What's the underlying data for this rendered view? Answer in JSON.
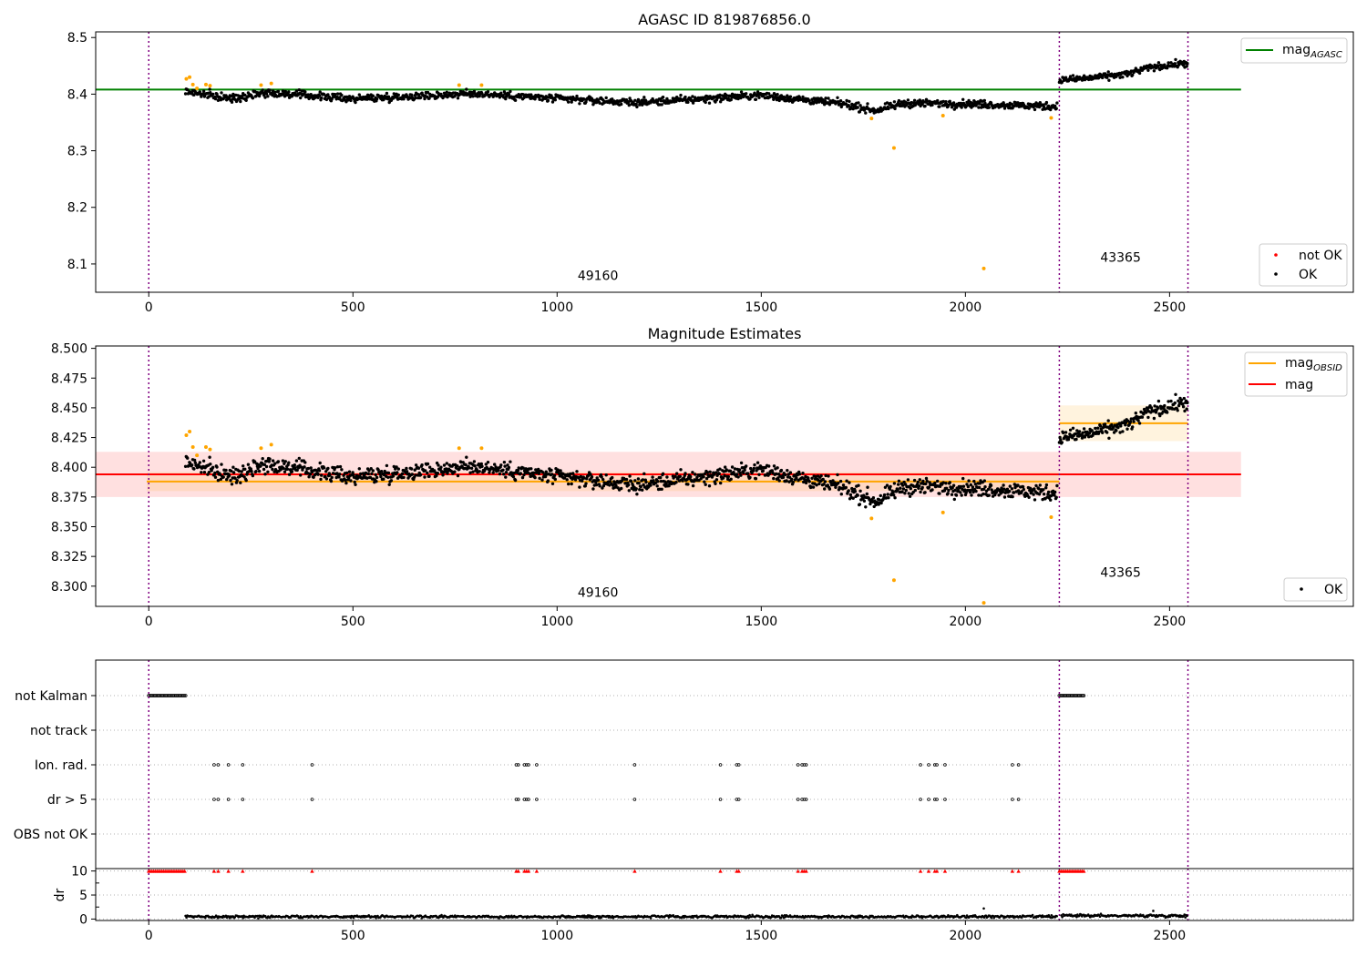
{
  "colors": {
    "ok": "#000000",
    "not_ok_point": "#ff0000",
    "flagged_point": "#ffa500",
    "agasc_line": "#008000",
    "obsid_line": "#ffa500",
    "mag_line": "#ff0000",
    "obs_boundary": "#800080",
    "dr_flag_marker": "#ff0000"
  },
  "obs_boundaries": [
    0,
    2230,
    2545
  ],
  "chart_data": [
    {
      "type": "scatter",
      "title": "AGASC ID 819876856.0",
      "xlim": [
        -130,
        2950
      ],
      "ylim": [
        8.05,
        8.51
      ],
      "xticks": [
        0,
        500,
        1000,
        1500,
        2000,
        2500
      ],
      "yticks": [
        8.1,
        8.2,
        8.3,
        8.4,
        8.5
      ],
      "ytick_labels": [
        "8.1",
        "8.2",
        "8.3",
        "8.4",
        "8.5"
      ],
      "grid": false,
      "lines": [
        {
          "name": "mag_AGASC",
          "label_main": "mag",
          "label_sub": "AGASC",
          "color": "#008000",
          "y": 8.408,
          "x": [
            -130,
            2675
          ]
        }
      ],
      "series": [
        {
          "name": "not OK",
          "color": "#ff0000"
        },
        {
          "name": "OK",
          "color": "#000000"
        }
      ],
      "segments": [
        {
          "x_range": [
            90,
            2225
          ],
          "levels": [
            [
              90,
              8.405
            ],
            [
              200,
              8.392
            ],
            [
              280,
              8.403
            ],
            [
              500,
              8.392
            ],
            [
              800,
              8.401
            ],
            [
              1000,
              8.392
            ],
            [
              1200,
              8.385
            ],
            [
              1500,
              8.398
            ],
            [
              1700,
              8.383
            ],
            [
              1780,
              8.371
            ],
            [
              1850,
              8.384
            ],
            [
              2000,
              8.383
            ],
            [
              2225,
              8.378
            ]
          ],
          "noise": 0.008
        },
        {
          "x_range": [
            2230,
            2545
          ],
          "levels": [
            [
              2230,
              8.425
            ],
            [
              2300,
              8.428
            ],
            [
              2400,
              8.436
            ],
            [
              2450,
              8.447
            ],
            [
              2545,
              8.455
            ]
          ],
          "noise": 0.007
        }
      ],
      "flagged_points": [
        {
          "x": 92,
          "y": 8.427
        },
        {
          "x": 100,
          "y": 8.43
        },
        {
          "x": 108,
          "y": 8.417
        },
        {
          "x": 118,
          "y": 8.41
        },
        {
          "x": 140,
          "y": 8.417
        },
        {
          "x": 150,
          "y": 8.415
        },
        {
          "x": 275,
          "y": 8.416
        },
        {
          "x": 300,
          "y": 8.419
        },
        {
          "x": 760,
          "y": 8.416
        },
        {
          "x": 815,
          "y": 8.416
        },
        {
          "x": 1770,
          "y": 8.357
        },
        {
          "x": 1825,
          "y": 8.305
        },
        {
          "x": 1945,
          "y": 8.362
        },
        {
          "x": 2045,
          "y": 8.092
        },
        {
          "x": 2210,
          "y": 8.358
        }
      ],
      "annotations": [
        {
          "text": "49160",
          "x": 1100,
          "y": 8.072
        },
        {
          "text": "43365",
          "x": 2380,
          "y": 8.104
        }
      ],
      "legends": [
        {
          "position": "upper right",
          "entries": [
            "mag_AGASC"
          ]
        },
        {
          "position": "lower right",
          "entries": [
            "not OK",
            "OK"
          ]
        }
      ]
    },
    {
      "type": "scatter",
      "title": "Magnitude Estimates",
      "xlim": [
        -130,
        2950
      ],
      "ylim": [
        8.283,
        8.502
      ],
      "xticks": [
        0,
        500,
        1000,
        1500,
        2000,
        2500
      ],
      "yticks": [
        8.3,
        8.325,
        8.35,
        8.375,
        8.4,
        8.425,
        8.45,
        8.475,
        8.5
      ],
      "ytick_labels": [
        "8.300",
        "8.325",
        "8.350",
        "8.375",
        "8.400",
        "8.425",
        "8.450",
        "8.475",
        "8.500"
      ],
      "grid": false,
      "bands": [
        {
          "x": [
            -130,
            2675
          ],
          "y": [
            8.375,
            8.413
          ],
          "color": "#ff0000",
          "opacity": 0.12
        },
        {
          "x": [
            -5,
            2230
          ],
          "y": [
            8.38,
            8.396
          ],
          "color": "#ffa500",
          "opacity": 0.13
        },
        {
          "x": [
            2230,
            2545
          ],
          "y": [
            8.422,
            8.452
          ],
          "color": "#ffa500",
          "opacity": 0.13
        }
      ],
      "lines": [
        {
          "name": "mag",
          "label_main": "mag",
          "label_sub": "",
          "color": "#ff0000",
          "y": 8.394,
          "x": [
            -130,
            2675
          ]
        },
        {
          "name": "mag_OBSID",
          "label_main": "mag",
          "label_sub": "OBSID",
          "color": "#ffa500",
          "y": 8.388,
          "x": [
            -5,
            2230
          ]
        },
        {
          "name": "mag_OBSID_2",
          "label_main": "mag",
          "label_sub": "OBSID",
          "color": "#ffa500",
          "y": 8.437,
          "x": [
            2230,
            2545
          ]
        }
      ],
      "series": [
        {
          "name": "OK",
          "color": "#000000"
        }
      ],
      "segments": [
        {
          "x_range": [
            90,
            2225
          ],
          "levels": [
            [
              90,
              8.405
            ],
            [
              200,
              8.392
            ],
            [
              280,
              8.403
            ],
            [
              500,
              8.392
            ],
            [
              800,
              8.401
            ],
            [
              1000,
              8.392
            ],
            [
              1200,
              8.385
            ],
            [
              1500,
              8.398
            ],
            [
              1700,
              8.383
            ],
            [
              1780,
              8.371
            ],
            [
              1850,
              8.384
            ],
            [
              2000,
              8.383
            ],
            [
              2225,
              8.378
            ]
          ],
          "noise": 0.008
        },
        {
          "x_range": [
            2230,
            2545
          ],
          "levels": [
            [
              2230,
              8.425
            ],
            [
              2300,
              8.428
            ],
            [
              2400,
              8.436
            ],
            [
              2450,
              8.447
            ],
            [
              2545,
              8.455
            ]
          ],
          "noise": 0.007
        }
      ],
      "flagged_points": [
        {
          "x": 92,
          "y": 8.427
        },
        {
          "x": 100,
          "y": 8.43
        },
        {
          "x": 108,
          "y": 8.417
        },
        {
          "x": 118,
          "y": 8.41
        },
        {
          "x": 140,
          "y": 8.417
        },
        {
          "x": 150,
          "y": 8.415
        },
        {
          "x": 275,
          "y": 8.416
        },
        {
          "x": 300,
          "y": 8.419
        },
        {
          "x": 760,
          "y": 8.416
        },
        {
          "x": 815,
          "y": 8.416
        },
        {
          "x": 1770,
          "y": 8.357
        },
        {
          "x": 1825,
          "y": 8.305
        },
        {
          "x": 1945,
          "y": 8.362
        },
        {
          "x": 2045,
          "y": 8.286
        },
        {
          "x": 2210,
          "y": 8.358
        }
      ],
      "annotations": [
        {
          "text": "49160",
          "x": 1100,
          "y": 8.291
        },
        {
          "text": "43365",
          "x": 2380,
          "y": 8.308
        }
      ],
      "legends": [
        {
          "position": "upper right",
          "entries": [
            "mag_OBSID",
            "mag"
          ]
        },
        {
          "position": "lower right",
          "entries": [
            "OK"
          ]
        }
      ]
    },
    {
      "type": "scatter",
      "title": "",
      "xlim": [
        -130,
        2950
      ],
      "categories": [
        "not Kalman",
        "not track",
        "Ion. rad.",
        "dr > 5",
        "OBS not OK"
      ],
      "grid": true,
      "flag_rows": [
        {
          "label": "not Kalman",
          "x_runs": [
            [
              0,
              90
            ],
            [
              2230,
              2290
            ]
          ],
          "x_points": []
        },
        {
          "label": "not track",
          "x_runs": [],
          "x_points": []
        },
        {
          "label": "Ion. rad.",
          "x_runs": [],
          "x_points": [
            160,
            170,
            195,
            230,
            400,
            900,
            905,
            920,
            925,
            930,
            950,
            1190,
            1400,
            1440,
            1445,
            1590,
            1600,
            1605,
            1610,
            1890,
            1910,
            1925,
            1930,
            1950,
            2115,
            2130
          ]
        },
        {
          "label": "dr > 5",
          "x_runs": [],
          "x_points": [
            160,
            170,
            195,
            230,
            400,
            900,
            905,
            920,
            925,
            930,
            950,
            1190,
            1400,
            1440,
            1445,
            1590,
            1600,
            1605,
            1610,
            1890,
            1910,
            1925,
            1930,
            1950,
            2115,
            2130
          ]
        },
        {
          "label": "OBS not OK",
          "x_runs": [],
          "x_points": []
        }
      ]
    },
    {
      "type": "scatter",
      "title": "",
      "ylabel": "dr",
      "xlim": [
        -130,
        2950
      ],
      "ylim": [
        -0.3,
        10.5
      ],
      "xticks": [
        0,
        500,
        1000,
        1500,
        2000,
        2500
      ],
      "yticks": [
        0,
        5,
        10
      ],
      "ytick_labels": [
        "0",
        "5",
        "10"
      ],
      "grid": true,
      "dr_segments": [
        {
          "x_range": [
            90,
            2225
          ],
          "mean": 0.5,
          "noise": 0.3
        },
        {
          "x_range": [
            2235,
            2545
          ],
          "mean": 0.7,
          "noise": 0.35
        }
      ],
      "dr_spikes": [
        {
          "x": 2045,
          "y": 2.2
        },
        {
          "x": 2460,
          "y": 1.7
        }
      ],
      "flag_markers_y": 10,
      "flag_marker_runs": [
        [
          0,
          90
        ],
        [
          2230,
          2290
        ]
      ],
      "flag_marker_points": [
        160,
        170,
        195,
        230,
        400,
        900,
        905,
        920,
        925,
        930,
        950,
        1190,
        1400,
        1440,
        1445,
        1590,
        1600,
        1605,
        1610,
        1890,
        1910,
        1925,
        1930,
        1950,
        2115,
        2130
      ]
    }
  ]
}
